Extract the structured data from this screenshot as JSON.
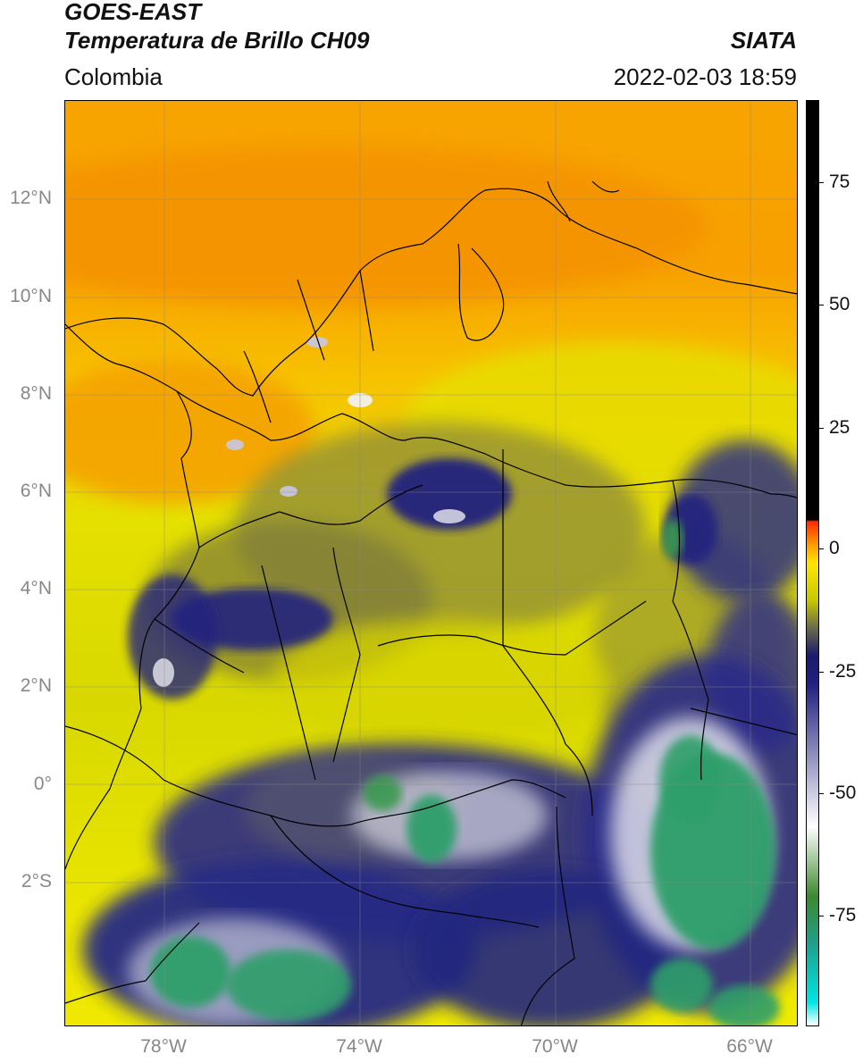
{
  "header": {
    "title": "GOES-EAST",
    "subtitle": "Temperatura de Brillo CH09",
    "region": "Colombia",
    "source": "SIATA",
    "datetime": "2022-02-03 18:59"
  },
  "axes": {
    "lat_ticks": [
      "12°N",
      "10°N",
      "8°N",
      "6°N",
      "4°N",
      "2°N",
      "0°",
      "2°S"
    ],
    "lon_ticks": [
      "78°W",
      "74°W",
      "70°W",
      "66°W"
    ]
  },
  "colorbar": {
    "ticks": [
      "75",
      "50",
      "25",
      "0",
      "-25",
      "-50",
      "-75"
    ],
    "stops": [
      "#ffffff",
      "#00e5e5",
      "#1f9e89",
      "#3c8a2e",
      "#ffffff",
      "#202080",
      "#1a1a6e",
      "#6b6b4a",
      "#c8c800",
      "#ffe600",
      "#ff9a00",
      "#ff2a00",
      "#000000"
    ]
  }
}
